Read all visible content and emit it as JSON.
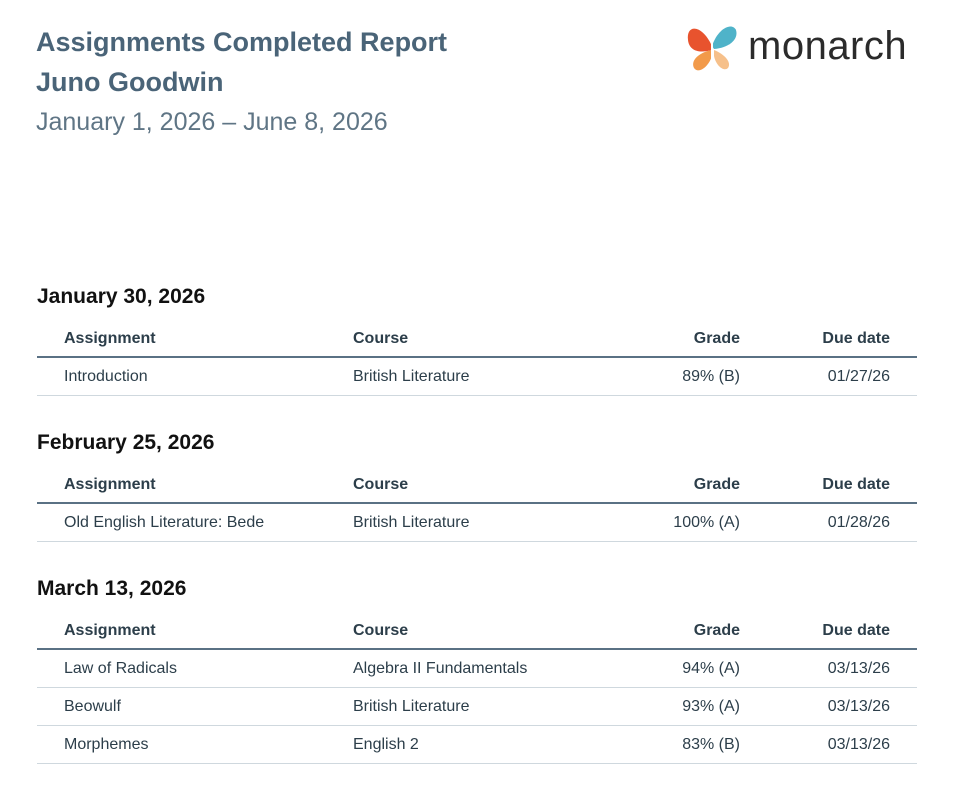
{
  "report": {
    "title": "Assignments Completed Report",
    "student": "Juno Goodwin",
    "date_range": "January 1, 2026 – June 8, 2026"
  },
  "logo": {
    "text": "monarch",
    "icon": "butterfly-logo-icon",
    "colors": [
      "#e8532e",
      "#f29a4a",
      "#4fb3c9"
    ]
  },
  "columns": {
    "assignment": "Assignment",
    "course": "Course",
    "grade": "Grade",
    "due": "Due date"
  },
  "sections": [
    {
      "date": "January 30, 2026",
      "rows": [
        {
          "assignment": "Introduction",
          "course": "British Literature",
          "grade": "89% (B)",
          "due": "01/27/26"
        }
      ]
    },
    {
      "date": "February 25, 2026",
      "rows": [
        {
          "assignment": "Old English Literature: Bede",
          "course": "British Literature",
          "grade": "100% (A)",
          "due": "01/28/26"
        }
      ]
    },
    {
      "date": "March 13, 2026",
      "rows": [
        {
          "assignment": "Law of Radicals",
          "course": "Algebra II Fundamentals",
          "grade": "94% (A)",
          "due": "03/13/26"
        },
        {
          "assignment": "Beowulf",
          "course": "British Literature",
          "grade": "93% (A)",
          "due": "03/13/26"
        },
        {
          "assignment": "Morphemes",
          "course": "English 2",
          "grade": "83% (B)",
          "due": "03/13/26"
        }
      ]
    }
  ]
}
